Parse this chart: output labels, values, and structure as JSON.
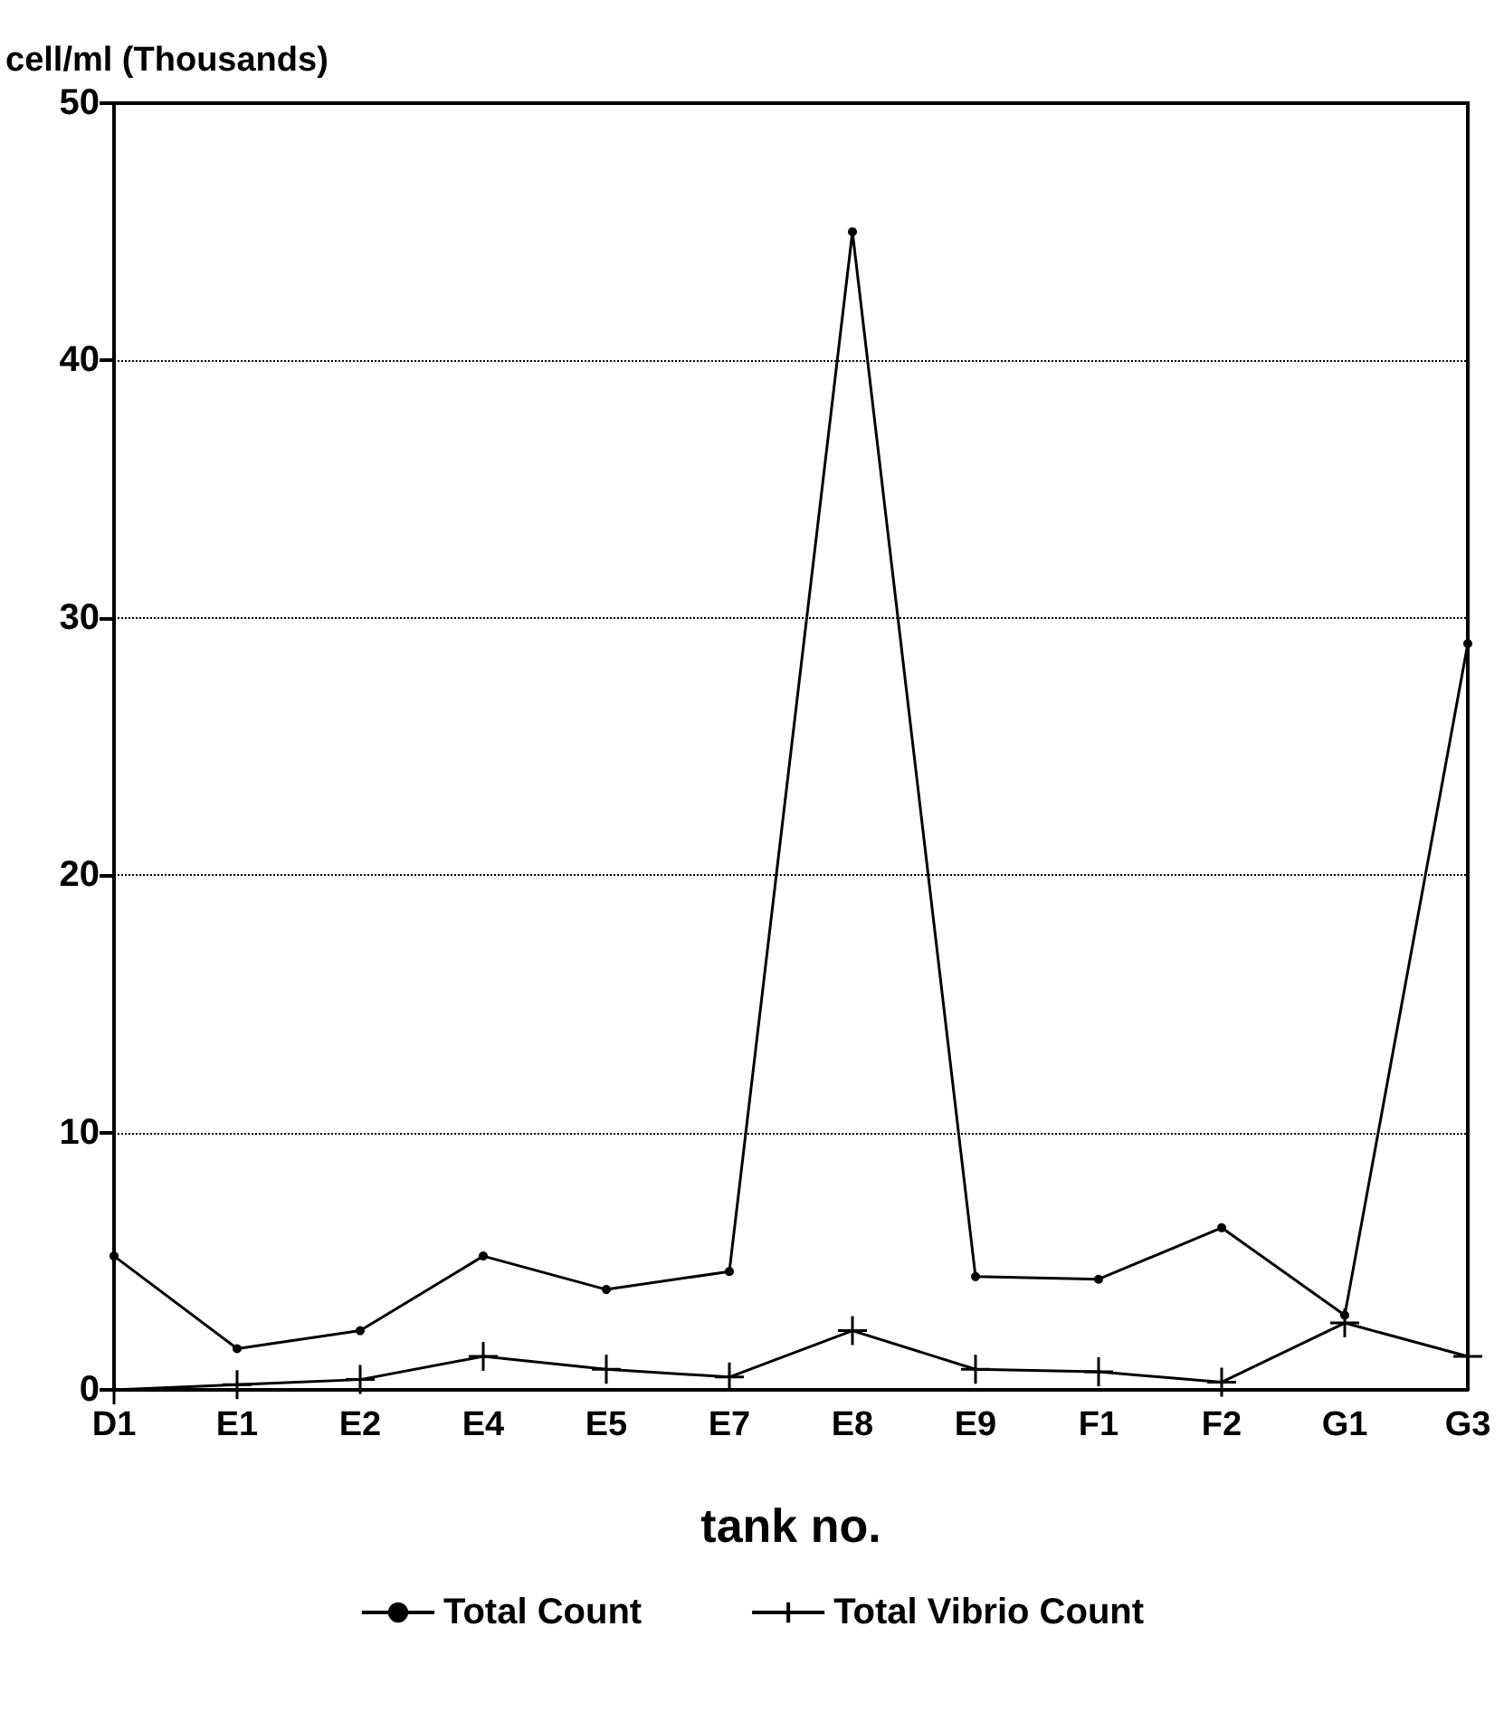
{
  "chart_data": {
    "type": "line",
    "xlabel": "tank no.",
    "ylabel": "cell/ml (Thousands)",
    "categories": [
      "D1",
      "E1",
      "E2",
      "E4",
      "E5",
      "E7",
      "E8",
      "E9",
      "F1",
      "F2",
      "G1",
      "G3"
    ],
    "series": [
      {
        "name": "Total Count",
        "color": "#000000",
        "marker": "circle",
        "values": [
          5.2,
          1.6,
          2.3,
          5.2,
          3.9,
          4.6,
          45,
          4.4,
          4.3,
          6.3,
          2.9,
          29
        ]
      },
      {
        "name": "Total Vibrio Count",
        "color": "#000000",
        "marker": "cross",
        "values": [
          0,
          0.2,
          0.4,
          1.3,
          0.8,
          0.5,
          2.3,
          0.8,
          0.7,
          0.3,
          2.6,
          1.3
        ]
      }
    ],
    "ylim": [
      0,
      50
    ],
    "yticks": [
      0,
      10,
      20,
      30,
      40,
      50
    ],
    "grid": "y",
    "legend": "bottom",
    "line_style": "solid"
  }
}
